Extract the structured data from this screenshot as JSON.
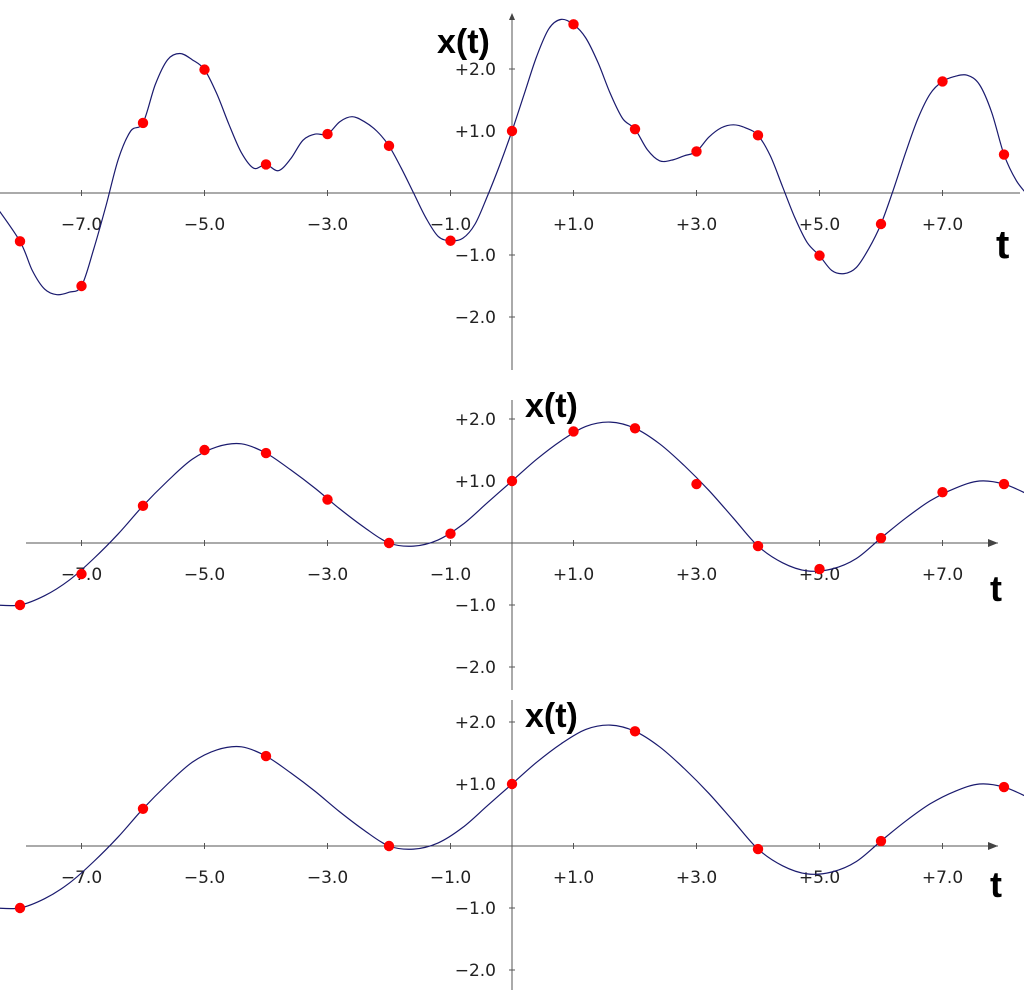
{
  "colors": {
    "curve": "#1a1a6e",
    "points": "#ff0000",
    "axis": "#555555",
    "grid": "#cccccc",
    "text": "#222222",
    "background": "#ffffff"
  },
  "chart_data": [
    {
      "type": "line",
      "xlabel": "t",
      "ylabel": "x(t)",
      "xlim": [
        -8.4,
        8.4
      ],
      "ylim": [
        -2.8,
        2.8
      ],
      "x_arrow": false,
      "x_ticks": [
        {
          "value": -7,
          "label": "−7.0"
        },
        {
          "value": -5,
          "label": "−5.0"
        },
        {
          "value": -3,
          "label": "−3.0"
        },
        {
          "value": -1,
          "label": "−1.0"
        },
        {
          "value": 1,
          "label": "+1.0"
        },
        {
          "value": 3,
          "label": "+3.0"
        },
        {
          "value": 5,
          "label": "+5.0"
        },
        {
          "value": 7,
          "label": "+7.0"
        }
      ],
      "y_ticks": [
        {
          "value": 2,
          "label": "+2.0"
        },
        {
          "value": 1,
          "label": "+1.0"
        },
        {
          "value": -1,
          "label": "−1.0"
        },
        {
          "value": -2,
          "label": "−2.0"
        }
      ],
      "grid": false,
      "series": [
        {
          "kind": "samples",
          "x": [
            -8,
            -7,
            -6,
            -5,
            -4,
            -3,
            -2,
            -1,
            0,
            1,
            2,
            3,
            4,
            5,
            6,
            7,
            8
          ],
          "values": [
            -0.78,
            -1.5,
            1.13,
            1.99,
            0.46,
            0.95,
            0.76,
            -0.77,
            1.0,
            2.72,
            1.03,
            0.67,
            0.93,
            -1.01,
            -0.5,
            1.8,
            0.62
          ]
        },
        {
          "kind": "interpolated curve",
          "x": [
            -8.4,
            -8,
            -7.8,
            -7.6,
            -7.4,
            -7.2,
            -7,
            -6.8,
            -6.6,
            -6.4,
            -6.2,
            -6,
            -5.8,
            -5.6,
            -5.4,
            -5.2,
            -5,
            -4.8,
            -4.6,
            -4.4,
            -4.2,
            -4,
            -3.8,
            -3.6,
            -3.4,
            -3.2,
            -3,
            -2.8,
            -2.6,
            -2.4,
            -2.2,
            -2,
            -1.8,
            -1.6,
            -1.4,
            -1.2,
            -1,
            -0.8,
            -0.6,
            -0.4,
            -0.2,
            0,
            0.2,
            0.4,
            0.6,
            0.8,
            1,
            1.2,
            1.4,
            1.6,
            1.8,
            2,
            2.2,
            2.4,
            2.6,
            2.8,
            3,
            3.2,
            3.4,
            3.6,
            3.8,
            4,
            4.2,
            4.4,
            4.6,
            4.8,
            5,
            5.2,
            5.4,
            5.6,
            5.8,
            6,
            6.2,
            6.4,
            6.6,
            6.8,
            7,
            7.2,
            7.4,
            7.6,
            7.8,
            8,
            8.2,
            8.4
          ],
          "values": [
            -0.2,
            -0.78,
            -1.25,
            -1.55,
            -1.64,
            -1.6,
            -1.5,
            -0.9,
            -0.2,
            0.55,
            1.0,
            1.13,
            1.75,
            2.15,
            2.25,
            2.15,
            1.99,
            1.6,
            1.1,
            0.65,
            0.4,
            0.46,
            0.36,
            0.55,
            0.85,
            0.95,
            0.95,
            1.15,
            1.23,
            1.15,
            1.0,
            0.76,
            0.4,
            0.0,
            -0.4,
            -0.7,
            -0.77,
            -0.73,
            -0.5,
            -0.05,
            0.45,
            1.0,
            1.6,
            2.2,
            2.65,
            2.8,
            2.72,
            2.5,
            2.1,
            1.6,
            1.2,
            1.03,
            0.7,
            0.52,
            0.53,
            0.6,
            0.67,
            0.9,
            1.05,
            1.1,
            1.05,
            0.93,
            0.6,
            0.1,
            -0.4,
            -0.8,
            -1.01,
            -1.25,
            -1.3,
            -1.2,
            -0.9,
            -0.5,
            0.05,
            0.65,
            1.2,
            1.6,
            1.8,
            1.88,
            1.9,
            1.75,
            1.3,
            0.62,
            0.2,
            -0.05
          ]
        }
      ]
    },
    {
      "type": "line",
      "xlabel": "t",
      "ylabel": "x(t)",
      "xlim": [
        -8.4,
        8.4
      ],
      "ylim": [
        -2.3,
        2.3
      ],
      "x_arrow": true,
      "x_ticks": [
        {
          "value": -7,
          "label": "−7.0"
        },
        {
          "value": -5,
          "label": "−5.0"
        },
        {
          "value": -3,
          "label": "−3.0"
        },
        {
          "value": -1,
          "label": "−1.0"
        },
        {
          "value": 1,
          "label": "+1.0"
        },
        {
          "value": 3,
          "label": "+3.0"
        },
        {
          "value": 5,
          "label": "+5.0"
        },
        {
          "value": 7,
          "label": "+7.0"
        }
      ],
      "y_ticks": [
        {
          "value": 2,
          "label": "+2.0"
        },
        {
          "value": 1,
          "label": "+1.0"
        },
        {
          "value": -1,
          "label": "−1.0"
        },
        {
          "value": -2,
          "label": "−2.0"
        }
      ],
      "grid": false,
      "series": [
        {
          "kind": "samples",
          "x": [
            -8,
            -7,
            -6,
            -5,
            -4,
            -3,
            -2,
            -1,
            0,
            1,
            2,
            3,
            4,
            5,
            6,
            7,
            8
          ],
          "values": [
            -1.0,
            -0.5,
            0.6,
            1.5,
            1.45,
            0.7,
            0.0,
            0.15,
            1.0,
            1.8,
            1.85,
            0.95,
            -0.05,
            -0.42,
            0.08,
            0.82,
            0.95
          ]
        },
        {
          "kind": "interpolated curve",
          "x": [
            -8.4,
            -8,
            -7.6,
            -7.2,
            -6.8,
            -6.4,
            -6,
            -5.6,
            -5.2,
            -4.8,
            -4.4,
            -4,
            -3.6,
            -3.2,
            -2.8,
            -2.4,
            -2,
            -1.6,
            -1.2,
            -0.8,
            -0.4,
            0,
            0.4,
            0.8,
            1.2,
            1.6,
            2,
            2.4,
            2.8,
            3.2,
            3.6,
            4,
            4.4,
            4.8,
            5.2,
            5.6,
            6,
            6.4,
            6.8,
            7.2,
            7.6,
            8,
            8.4
          ],
          "values": [
            -1.0,
            -1.0,
            -0.85,
            -0.6,
            -0.25,
            0.15,
            0.6,
            1.0,
            1.35,
            1.55,
            1.6,
            1.45,
            1.18,
            0.88,
            0.55,
            0.25,
            0.0,
            -0.05,
            0.05,
            0.3,
            0.65,
            1.0,
            1.35,
            1.65,
            1.88,
            1.95,
            1.85,
            1.6,
            1.25,
            0.85,
            0.4,
            -0.05,
            -0.32,
            -0.45,
            -0.42,
            -0.25,
            0.08,
            0.4,
            0.68,
            0.88,
            1.0,
            0.95,
            0.78
          ]
        }
      ]
    },
    {
      "type": "line",
      "xlabel": "t",
      "ylabel": "x(t)",
      "xlim": [
        -8.4,
        8.4
      ],
      "ylim": [
        -2.3,
        2.3
      ],
      "x_arrow": true,
      "x_ticks": [
        {
          "value": -7,
          "label": "−7.0"
        },
        {
          "value": -5,
          "label": "−5.0"
        },
        {
          "value": -3,
          "label": "−3.0"
        },
        {
          "value": -1,
          "label": "−1.0"
        },
        {
          "value": 1,
          "label": "+1.0"
        },
        {
          "value": 3,
          "label": "+3.0"
        },
        {
          "value": 5,
          "label": "+5.0"
        },
        {
          "value": 7,
          "label": "+7.0"
        }
      ],
      "y_ticks": [
        {
          "value": 2,
          "label": "+2.0"
        },
        {
          "value": 1,
          "label": "+1.0"
        },
        {
          "value": -1,
          "label": "−1.0"
        },
        {
          "value": -2,
          "label": "−2.0"
        }
      ],
      "grid": false,
      "series": [
        {
          "kind": "samples",
          "x": [
            -8,
            -6,
            -4,
            -2,
            0,
            2,
            4,
            6,
            8
          ],
          "values": [
            -1.0,
            0.6,
            1.45,
            0.0,
            1.0,
            1.85,
            -0.05,
            0.08,
            0.95
          ]
        },
        {
          "kind": "interpolated curve",
          "x": [
            -8.4,
            -8,
            -7.6,
            -7.2,
            -6.8,
            -6.4,
            -6,
            -5.6,
            -5.2,
            -4.8,
            -4.4,
            -4,
            -3.6,
            -3.2,
            -2.8,
            -2.4,
            -2,
            -1.6,
            -1.2,
            -0.8,
            -0.4,
            0,
            0.4,
            0.8,
            1.2,
            1.6,
            2,
            2.4,
            2.8,
            3.2,
            3.6,
            4,
            4.4,
            4.8,
            5.2,
            5.6,
            6,
            6.4,
            6.8,
            7.2,
            7.6,
            8,
            8.4
          ],
          "values": [
            -1.0,
            -1.0,
            -0.85,
            -0.6,
            -0.25,
            0.15,
            0.6,
            1.0,
            1.35,
            1.55,
            1.6,
            1.45,
            1.18,
            0.88,
            0.55,
            0.25,
            0.0,
            -0.05,
            0.05,
            0.3,
            0.65,
            1.0,
            1.35,
            1.65,
            1.88,
            1.95,
            1.85,
            1.6,
            1.25,
            0.85,
            0.4,
            -0.05,
            -0.32,
            -0.45,
            -0.42,
            -0.25,
            0.08,
            0.4,
            0.68,
            0.88,
            1.0,
            0.95,
            0.78
          ]
        }
      ]
    }
  ]
}
